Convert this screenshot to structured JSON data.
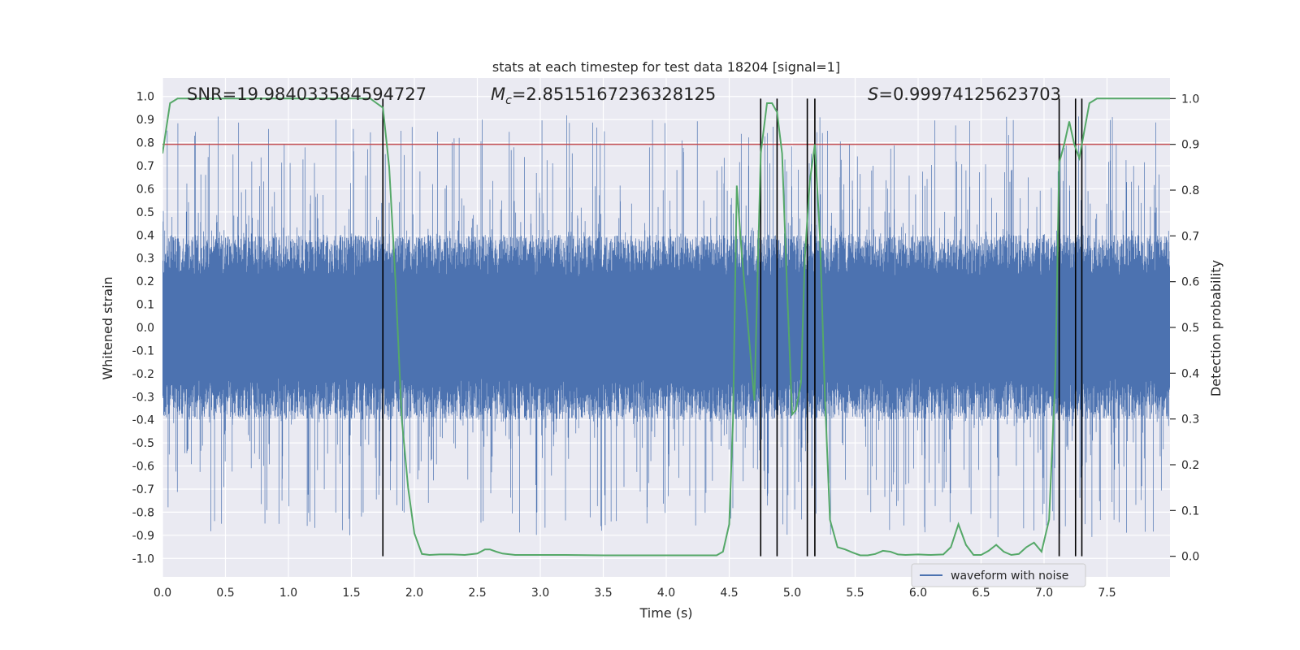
{
  "chart_data": {
    "type": "line",
    "title": "stats at each timestep for test data 18204 [signal=1]",
    "xlabel": "Time (s)",
    "ylabel_left": "Whitened strain",
    "ylabel_right": "Detection probability",
    "xlim": [
      0.0,
      8.0
    ],
    "ylim_left": [
      -1.08,
      1.08
    ],
    "ylim_right": [
      -0.045,
      1.045
    ],
    "x_ticks": [
      "0.0",
      "0.5",
      "1.0",
      "1.5",
      "2.0",
      "2.5",
      "3.0",
      "3.5",
      "4.0",
      "4.5",
      "5.0",
      "5.5",
      "6.0",
      "6.5",
      "7.0",
      "7.5"
    ],
    "y_left_ticks": [
      "1.0",
      "0.9",
      "0.8",
      "0.7",
      "0.6",
      "0.5",
      "0.4",
      "0.3",
      "0.2",
      "0.1",
      "0.0",
      "-0.1",
      "-0.2",
      "-0.3",
      "-0.4",
      "-0.5",
      "-0.6",
      "-0.7",
      "-0.8",
      "-0.9",
      "-1.0"
    ],
    "y_right_ticks": [
      "1.0",
      "0.9",
      "0.8",
      "0.7",
      "0.6",
      "0.5",
      "0.4",
      "0.3",
      "0.2",
      "0.1",
      "0.0"
    ],
    "annotations": {
      "snr": "SNR=19.984033584594727",
      "mc_symbol": "M",
      "mc_subscript": "c",
      "mc_value": "=2.8515167236328125",
      "s_symbol": "S",
      "s_value": "=0.99974125623703"
    },
    "threshold": 0.9,
    "waveform": {
      "name": "waveform with noise",
      "amplitude_range": [
        -0.91,
        0.92
      ],
      "typical_envelope": 0.4,
      "color": "#4c72b0"
    },
    "detection_probability": {
      "color": "#55a868",
      "x": [
        0.0,
        0.06,
        0.12,
        0.2,
        0.3,
        0.5,
        0.8,
        1.0,
        1.3,
        1.5,
        1.65,
        1.7,
        1.75,
        1.8,
        1.85,
        1.9,
        1.95,
        2.0,
        2.06,
        2.12,
        2.2,
        2.3,
        2.4,
        2.5,
        2.56,
        2.6,
        2.65,
        2.7,
        2.8,
        3.0,
        3.2,
        3.5,
        3.8,
        4.0,
        4.2,
        4.3,
        4.4,
        4.45,
        4.5,
        4.53,
        4.56,
        4.6,
        4.65,
        4.7,
        4.75,
        4.8,
        4.84,
        4.88,
        4.92,
        4.96,
        5.0,
        5.03,
        5.07,
        5.1,
        5.14,
        5.18,
        5.22,
        5.26,
        5.3,
        5.36,
        5.42,
        5.48,
        5.54,
        5.6,
        5.66,
        5.72,
        5.78,
        5.84,
        5.9,
        6.0,
        6.1,
        6.2,
        6.26,
        6.32,
        6.38,
        6.44,
        6.5,
        6.56,
        6.62,
        6.68,
        6.74,
        6.8,
        6.86,
        6.92,
        6.98,
        7.04,
        7.09,
        7.12,
        7.16,
        7.2,
        7.24,
        7.28,
        7.32,
        7.36,
        7.42,
        7.5,
        7.6,
        7.7,
        7.8,
        8.0
      ],
      "values": [
        0.88,
        0.99,
        1.0,
        1.0,
        1.0,
        1.0,
        1.0,
        1.0,
        1.0,
        1.0,
        1.0,
        0.99,
        0.98,
        0.85,
        0.6,
        0.3,
        0.15,
        0.05,
        0.005,
        0.003,
        0.004,
        0.004,
        0.003,
        0.006,
        0.015,
        0.015,
        0.01,
        0.006,
        0.003,
        0.003,
        0.003,
        0.002,
        0.002,
        0.002,
        0.002,
        0.002,
        0.002,
        0.01,
        0.07,
        0.3,
        0.81,
        0.66,
        0.5,
        0.34,
        0.88,
        0.99,
        0.99,
        0.97,
        0.88,
        0.58,
        0.31,
        0.32,
        0.38,
        0.65,
        0.82,
        0.9,
        0.7,
        0.35,
        0.08,
        0.02,
        0.015,
        0.008,
        0.002,
        0.002,
        0.005,
        0.012,
        0.01,
        0.004,
        0.003,
        0.004,
        0.003,
        0.004,
        0.02,
        0.07,
        0.025,
        0.003,
        0.003,
        0.012,
        0.025,
        0.01,
        0.003,
        0.005,
        0.02,
        0.03,
        0.01,
        0.08,
        0.4,
        0.86,
        0.9,
        0.95,
        0.9,
        0.87,
        0.93,
        0.99,
        1.0,
        1.0,
        1.0,
        1.0,
        1.0,
        1.0
      ]
    },
    "event_lines": [
      1.75,
      4.75,
      4.88,
      5.12,
      5.18,
      7.12,
      7.25,
      7.3
    ],
    "legend": {
      "placement": "bottom-right",
      "entries": [
        "waveform with noise"
      ]
    }
  }
}
